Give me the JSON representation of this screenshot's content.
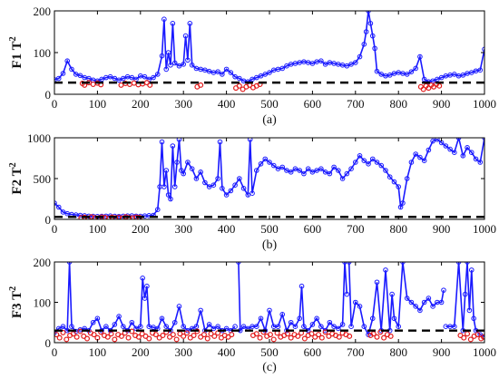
{
  "colors": {
    "series": "#1a1aff",
    "fault": "#e21b1b",
    "limit": "#000000"
  },
  "chart_data": [
    {
      "type": "line",
      "ylabel": "F1 T",
      "ylabel_sup": "2",
      "caption": "(a)",
      "xlim": [
        0,
        1000
      ],
      "ylim": [
        0,
        200
      ],
      "xticks": [
        0,
        100,
        200,
        300,
        400,
        500,
        600,
        700,
        800,
        900,
        1000
      ],
      "yticks": [
        0,
        100,
        200
      ],
      "grid": false,
      "control_limit": 28,
      "red_ranges": [
        [
          60,
          110
        ],
        [
          150,
          225
        ],
        [
          330,
          345
        ],
        [
          420,
          480
        ],
        [
          850,
          900
        ]
      ],
      "series": [
        {
          "x": [
            0,
            10,
            20,
            30,
            40,
            50,
            60,
            70,
            80,
            90,
            100,
            110,
            120,
            130,
            140,
            150,
            160,
            170,
            180,
            190,
            200,
            210,
            220,
            230,
            240,
            250,
            255,
            260,
            265,
            270,
            275,
            280,
            290,
            300,
            305,
            310,
            315,
            320,
            330,
            340,
            350,
            360,
            370,
            380,
            390,
            400,
            410,
            420,
            430,
            440,
            450,
            460,
            470,
            480,
            490,
            500,
            510,
            520,
            530,
            540,
            550,
            560,
            570,
            580,
            590,
            600,
            610,
            620,
            630,
            640,
            650,
            660,
            670,
            680,
            690,
            700,
            710,
            720,
            725,
            730,
            735,
            740,
            745,
            750,
            760,
            770,
            780,
            790,
            800,
            810,
            820,
            830,
            840,
            850,
            860,
            870,
            880,
            890,
            900,
            910,
            920,
            930,
            940,
            950,
            960,
            970,
            980,
            990,
            1000
          ],
          "y": [
            35,
            38,
            50,
            80,
            60,
            48,
            45,
            40,
            38,
            34,
            32,
            36,
            40,
            42,
            38,
            34,
            38,
            42,
            40,
            36,
            44,
            42,
            36,
            40,
            48,
            92,
            180,
            60,
            100,
            70,
            170,
            75,
            68,
            72,
            140,
            82,
            170,
            70,
            62,
            60,
            58,
            55,
            52,
            54,
            48,
            60,
            52,
            42,
            38,
            32,
            30,
            36,
            40,
            44,
            48,
            52,
            58,
            60,
            62,
            68,
            72,
            74,
            76,
            78,
            76,
            74,
            78,
            80,
            72,
            76,
            74,
            72,
            70,
            68,
            72,
            76,
            90,
            120,
            150,
            200,
            170,
            140,
            110,
            55,
            48,
            44,
            46,
            50,
            52,
            50,
            48,
            54,
            62,
            90,
            36,
            30,
            32,
            36,
            40,
            44,
            46,
            48,
            44,
            46,
            50,
            52,
            56,
            58,
            108
          ]
        }
      ],
      "red_points": {
        "x": [
          65,
          70,
          80,
          90,
          100,
          108,
          155,
          165,
          175,
          185,
          195,
          205,
          215,
          222,
          332,
          340,
          422,
          430,
          438,
          446,
          454,
          462,
          470,
          478,
          852,
          858,
          864,
          870,
          876,
          882,
          888,
          895
        ],
        "y": [
          26,
          22,
          28,
          24,
          27,
          23,
          22,
          26,
          24,
          27,
          23,
          25,
          28,
          22,
          18,
          22,
          15,
          20,
          12,
          18,
          22,
          16,
          20,
          24,
          18,
          12,
          20,
          15,
          22,
          18,
          24,
          20
        ]
      }
    },
    {
      "type": "line",
      "ylabel": "F2 T",
      "ylabel_sup": "2",
      "caption": "(b)",
      "xlim": [
        0,
        1000
      ],
      "ylim": [
        0,
        1000
      ],
      "xticks": [
        0,
        100,
        200,
        300,
        400,
        500,
        600,
        700,
        800,
        900,
        1000
      ],
      "yticks": [
        0,
        500,
        1000
      ],
      "grid": false,
      "control_limit": 30,
      "red_ranges": [
        [
          60,
          200
        ]
      ],
      "series": [
        {
          "x": [
            0,
            10,
            20,
            30,
            40,
            50,
            60,
            70,
            80,
            90,
            100,
            110,
            120,
            130,
            140,
            150,
            160,
            170,
            180,
            190,
            200,
            210,
            220,
            230,
            240,
            245,
            250,
            255,
            260,
            265,
            270,
            275,
            280,
            285,
            290,
            295,
            300,
            310,
            320,
            330,
            340,
            350,
            360,
            370,
            380,
            385,
            390,
            400,
            410,
            420,
            430,
            440,
            450,
            455,
            460,
            470,
            480,
            490,
            500,
            510,
            520,
            530,
            540,
            550,
            560,
            570,
            580,
            590,
            600,
            610,
            620,
            630,
            640,
            650,
            660,
            670,
            680,
            690,
            700,
            710,
            720,
            730,
            740,
            750,
            760,
            770,
            780,
            790,
            800,
            805,
            810,
            820,
            830,
            840,
            850,
            860,
            870,
            880,
            890,
            900,
            910,
            920,
            930,
            940,
            950,
            960,
            970,
            980,
            990,
            1000
          ],
          "y": [
            200,
            150,
            90,
            70,
            60,
            55,
            50,
            45,
            40,
            38,
            36,
            38,
            40,
            42,
            38,
            36,
            40,
            42,
            44,
            40,
            38,
            42,
            46,
            50,
            120,
            400,
            950,
            400,
            600,
            300,
            250,
            900,
            400,
            700,
            980,
            600,
            560,
            700,
            620,
            500,
            580,
            450,
            400,
            420,
            500,
            950,
            380,
            300,
            350,
            420,
            500,
            380,
            300,
            980,
            320,
            600,
            680,
            740,
            700,
            660,
            620,
            640,
            600,
            580,
            620,
            600,
            560,
            620,
            580,
            600,
            620,
            580,
            560,
            640,
            600,
            500,
            560,
            620,
            700,
            780,
            720,
            680,
            740,
            700,
            660,
            600,
            520,
            460,
            400,
            150,
            200,
            500,
            700,
            800,
            760,
            720,
            850,
            960,
            980,
            940,
            900,
            860,
            820,
            1000,
            780,
            880,
            820,
            740,
            700,
            1000
          ]
        }
      ],
      "red_points": {
        "x": [
          62,
          70,
          78,
          86,
          94,
          102,
          110,
          118,
          126,
          134,
          142,
          150,
          158,
          166,
          174,
          182,
          190,
          198
        ],
        "y": [
          18,
          25,
          12,
          30,
          20,
          15,
          28,
          22,
          10,
          26,
          18,
          24,
          14,
          30,
          20,
          16,
          26,
          22
        ]
      }
    },
    {
      "type": "line",
      "ylabel": "F3 T",
      "ylabel_sup": "2",
      "caption": "(c)",
      "xlim": [
        0,
        1000
      ],
      "ylim": [
        0,
        200
      ],
      "xticks": [
        0,
        100,
        200,
        300,
        400,
        500,
        600,
        700,
        800,
        900,
        1000
      ],
      "yticks": [
        0,
        100,
        200
      ],
      "grid": false,
      "control_limit": 30,
      "red_ranges": [
        [
          0,
          420
        ],
        [
          460,
          690
        ],
        [
          730,
          790
        ],
        [
          940,
          1000
        ]
      ],
      "series": [
        {
          "x": [
            0,
            10,
            20,
            30,
            35,
            40,
            50,
            60,
            70,
            80,
            90,
            100,
            110,
            120,
            130,
            140,
            150,
            160,
            170,
            180,
            190,
            200,
            205,
            210,
            215,
            220,
            230,
            240,
            250,
            260,
            270,
            280,
            290,
            300,
            310,
            320,
            330,
            340,
            350,
            360,
            370,
            380,
            390,
            400,
            410,
            420,
            428,
            432,
            440,
            450,
            460,
            470,
            480,
            490,
            500,
            510,
            520,
            530,
            540,
            550,
            560,
            570,
            575,
            580,
            590,
            600,
            610,
            620,
            630,
            640,
            650,
            660,
            670,
            675,
            680,
            685,
            690,
            700,
            710,
            720,
            730,
            740,
            750,
            760,
            770,
            780,
            785,
            790,
            800,
            810,
            820,
            830,
            840,
            850,
            860,
            870,
            880,
            890,
            900,
            905,
            910,
            920,
            930,
            940,
            950,
            955,
            960,
            965,
            970,
            975,
            980,
            990,
            1000
          ],
          "y": [
            25,
            35,
            40,
            30,
            200,
            40,
            28,
            32,
            35,
            30,
            50,
            60,
            30,
            40,
            30,
            45,
            65,
            40,
            30,
            50,
            35,
            40,
            160,
            110,
            140,
            40,
            38,
            35,
            60,
            40,
            30,
            50,
            90,
            40,
            30,
            35,
            40,
            80,
            30,
            45,
            35,
            40,
            30,
            35,
            30,
            40,
            200,
            30,
            40,
            35,
            40,
            40,
            60,
            30,
            80,
            40,
            40,
            70,
            30,
            50,
            40,
            60,
            140,
            40,
            30,
            45,
            60,
            40,
            30,
            50,
            40,
            35,
            45,
            200,
            120,
            200,
            40,
            100,
            90,
            40,
            20,
            60,
            150,
            30,
            180,
            30,
            120,
            60,
            40,
            200,
            110,
            100,
            90,
            80,
            100,
            110,
            90,
            100,
            100,
            130,
            40,
            40,
            40,
            200,
            30,
            120,
            200,
            80,
            180,
            60,
            30,
            20,
            15
          ],
          "gaps_after": [
            420,
            680,
            905
          ]
        }
      ],
      "red_points": {
        "x": [
          5,
          12,
          20,
          28,
          36,
          44,
          52,
          60,
          68,
          76,
          84,
          92,
          100,
          108,
          116,
          124,
          132,
          140,
          148,
          156,
          164,
          172,
          180,
          188,
          196,
          204,
          212,
          220,
          228,
          236,
          244,
          252,
          260,
          268,
          276,
          284,
          292,
          300,
          308,
          316,
          324,
          332,
          340,
          348,
          356,
          364,
          372,
          380,
          388,
          396,
          404,
          412,
          462,
          470,
          478,
          486,
          494,
          502,
          510,
          518,
          526,
          534,
          542,
          550,
          558,
          566,
          574,
          582,
          590,
          598,
          606,
          614,
          622,
          630,
          638,
          646,
          654,
          662,
          670,
          678,
          686,
          735,
          742,
          750,
          758,
          766,
          774,
          782,
          944,
          952,
          960,
          968,
          976,
          984,
          992,
          998
        ],
        "y": [
          20,
          12,
          25,
          8,
          18,
          22,
          14,
          28,
          16,
          10,
          24,
          20,
          12,
          26,
          18,
          14,
          22,
          8,
          20,
          16,
          24,
          12,
          28,
          18,
          14,
          22,
          16,
          10,
          24,
          20,
          12,
          18,
          26,
          14,
          20,
          8,
          22,
          16,
          24,
          12,
          18,
          28,
          14,
          20,
          10,
          22,
          16,
          24,
          12,
          18,
          14,
          20,
          18,
          22,
          12,
          26,
          16,
          20,
          8,
          24,
          14,
          18,
          22,
          12,
          20,
          16,
          24,
          10,
          18,
          22,
          14,
          20,
          12,
          26,
          16,
          22,
          18,
          14,
          24,
          20,
          16,
          18,
          22,
          14,
          26,
          12,
          20,
          16,
          18,
          12,
          22,
          8,
          16,
          20,
          10,
          14
        ]
      }
    }
  ]
}
